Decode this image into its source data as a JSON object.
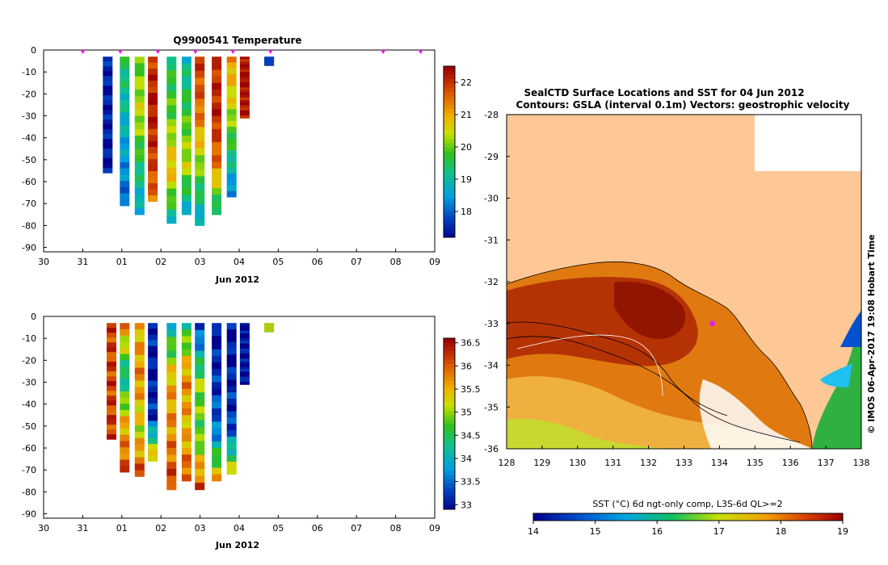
{
  "colors": {
    "land": "#fdc896",
    "white": "#ffffff",
    "float_marker": "#e020e0",
    "sal_bar": "#d0f000",
    "temp_bar": "#2060e0"
  },
  "chart_data": [
    {
      "id": "temperature",
      "type": "heatmap",
      "title": "Q9900541  Temperature",
      "xlabel": "Jun 2012",
      "x_ticks": [
        "30",
        "31",
        "01",
        "02",
        "03",
        "04",
        "05",
        "06",
        "07",
        "08",
        "09"
      ],
      "ylim": [
        -92,
        0
      ],
      "y_ticks": [
        "0",
        "-10",
        "-20",
        "-30",
        "-40",
        "-50",
        "-60",
        "-70",
        "-80",
        "-90"
      ],
      "colorbar": {
        "min": 17.2,
        "max": 22.5,
        "ticks": [
          "22",
          "21",
          "20",
          "19",
          "18"
        ],
        "tick_values": [
          22,
          21,
          20,
          19,
          18
        ]
      },
      "profile_markers_day": [
        1.0,
        2.0,
        3.0,
        4.0,
        5.0,
        6.0,
        9.0,
        10.0
      ],
      "profiles": [
        {
          "day": 1.6,
          "top": -3,
          "bottom": -56,
          "values": [
            17.6,
            17.5,
            17.5,
            17.4
          ]
        },
        {
          "day": 2.05,
          "top": -3,
          "bottom": -71,
          "values": [
            19.5,
            19,
            18.5,
            18
          ]
        },
        {
          "day": 2.45,
          "top": -3,
          "bottom": -75,
          "values": [
            20,
            20.5,
            19.5,
            18.5
          ]
        },
        {
          "day": 2.8,
          "top": -3,
          "bottom": -69,
          "values": [
            22,
            22.3,
            22,
            21.5
          ]
        },
        {
          "day": 3.3,
          "top": -3,
          "bottom": -79,
          "values": [
            19.5,
            20,
            21,
            18.8
          ]
        },
        {
          "day": 3.7,
          "top": -3,
          "bottom": -75,
          "values": [
            19,
            19.8,
            20.5,
            18.5
          ]
        },
        {
          "day": 4.05,
          "top": -3,
          "bottom": -80,
          "values": [
            22,
            21.5,
            20,
            18.5
          ]
        },
        {
          "day": 4.5,
          "top": -3,
          "bottom": -75,
          "values": [
            22,
            22.2,
            21.5,
            18.8
          ]
        },
        {
          "day": 4.9,
          "top": -3,
          "bottom": -67,
          "values": [
            21.2,
            20.5,
            19.5,
            18
          ]
        },
        {
          "day": 5.25,
          "top": -3,
          "bottom": -31,
          "values": [
            22.3,
            22.5,
            22.3,
            22.3
          ]
        },
        {
          "day": 5.9,
          "top": -3,
          "bottom": -7,
          "values": [
            17.8
          ]
        }
      ]
    },
    {
      "id": "salinity",
      "type": "heatmap",
      "title": "",
      "xlabel": "Jun 2012",
      "x_ticks": [
        "30",
        "31",
        "01",
        "02",
        "03",
        "04",
        "05",
        "06",
        "07",
        "08",
        "09"
      ],
      "ylim": [
        -92,
        0
      ],
      "y_ticks": [
        "0",
        "-10",
        "-20",
        "-30",
        "-40",
        "-50",
        "-60",
        "-70",
        "-80",
        "-90"
      ],
      "colorbar": {
        "min": 32.9,
        "max": 36.6,
        "ticks": [
          "36.5",
          "36",
          "35.5",
          "35",
          "34.5",
          "34",
          "33.5",
          "33"
        ],
        "tick_values": [
          36.5,
          36,
          35.5,
          35,
          34.5,
          34,
          33.5,
          33
        ]
      },
      "profiles": [
        {
          "day": 1.7,
          "top": -3,
          "bottom": -56,
          "values": [
            36.2,
            36.2,
            36.2,
            36.2
          ]
        },
        {
          "day": 2.05,
          "top": -3,
          "bottom": -71,
          "values": [
            35.8,
            34.2,
            35.6,
            36.2
          ]
        },
        {
          "day": 2.45,
          "top": -3,
          "bottom": -73,
          "values": [
            35.5,
            35.8,
            35.2,
            36.3
          ]
        },
        {
          "day": 2.8,
          "top": -3,
          "bottom": -66,
          "values": [
            33.2,
            33,
            33.2,
            36
          ]
        },
        {
          "day": 3.3,
          "top": -3,
          "bottom": -79,
          "values": [
            34.2,
            35.6,
            35.8,
            36.3
          ]
        },
        {
          "day": 3.7,
          "top": -3,
          "bottom": -75,
          "values": [
            34.5,
            35.8,
            35.5,
            36.2
          ]
        },
        {
          "day": 4.05,
          "top": -3,
          "bottom": -79,
          "values": [
            33.2,
            35,
            34.8,
            36.3
          ]
        },
        {
          "day": 4.5,
          "top": -3,
          "bottom": -75,
          "values": [
            33,
            33.2,
            33.6,
            35.8
          ]
        },
        {
          "day": 4.9,
          "top": -3,
          "bottom": -72,
          "values": [
            33,
            33.1,
            33.3,
            35.5
          ]
        },
        {
          "day": 5.25,
          "top": -3,
          "bottom": -31,
          "values": [
            32.9,
            33,
            33,
            33
          ]
        },
        {
          "day": 5.9,
          "top": -3,
          "bottom": -7,
          "values": [
            35.2
          ]
        }
      ]
    },
    {
      "id": "sst_map",
      "type": "heatmap",
      "title_line1": "SealCTD Surface Locations and SST for 04 Jun 2012",
      "title_line2": "Contours: GSLA (interval 0.1m) Vectors: geostrophic velocity",
      "lon_range": [
        128,
        138
      ],
      "lat_range": [
        -36,
        -28
      ],
      "x_ticks": [
        "128",
        "129",
        "130",
        "131",
        "132",
        "133",
        "134",
        "135",
        "136",
        "137",
        "138"
      ],
      "y_ticks": [
        "-28",
        "-29",
        "-30",
        "-31",
        "-32",
        "-33",
        "-34",
        "-35",
        "-36"
      ],
      "colorbar_label": "SST (°C) 6d ngt-only comp, L3S-6d QL>=2",
      "colorbar": {
        "min": 14,
        "max": 19,
        "ticks": [
          "14",
          "15",
          "16",
          "17",
          "18",
          "19"
        ]
      },
      "seal_location": {
        "lon": 133.8,
        "lat": -33.0
      },
      "credit": "© IMOS 06-Apr-2017 19:08 Hobart Time"
    }
  ]
}
